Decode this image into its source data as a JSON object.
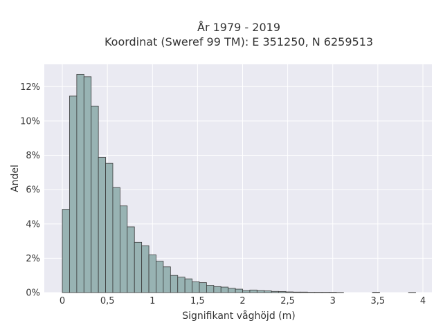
{
  "chart_data": {
    "type": "bar",
    "title_line1": "År 1979 - 2019",
    "title_line2": "Koordinat (Sweref 99 TM): E 351250, N 6259513",
    "xlabel": "Signifikant våghöjd (m)",
    "ylabel": "Andel",
    "xlim": [
      -0.2,
      4.1
    ],
    "ylim": [
      0,
      0.133
    ],
    "x_ticks": [
      {
        "value": 0,
        "label": "0"
      },
      {
        "value": 0.5,
        "label": "0,5"
      },
      {
        "value": 1,
        "label": "1"
      },
      {
        "value": 1.5,
        "label": "1,5"
      },
      {
        "value": 2,
        "label": "2"
      },
      {
        "value": 2.5,
        "label": "2,5"
      },
      {
        "value": 3,
        "label": "3"
      },
      {
        "value": 3.5,
        "label": "3,5"
      },
      {
        "value": 4,
        "label": "4"
      }
    ],
    "y_ticks": [
      {
        "value": 0,
        "label": "0%"
      },
      {
        "value": 0.02,
        "label": "2%"
      },
      {
        "value": 0.04,
        "label": "4%"
      },
      {
        "value": 0.06,
        "label": "6%"
      },
      {
        "value": 0.08,
        "label": "8%"
      },
      {
        "value": 0.1,
        "label": "10%"
      },
      {
        "value": 0.12,
        "label": "12%"
      }
    ],
    "bin_width": 0.08,
    "bin_start": 0.0,
    "values": [
      0.0485,
      0.1145,
      0.1272,
      0.1258,
      0.1087,
      0.0788,
      0.0753,
      0.0612,
      0.0505,
      0.0383,
      0.0293,
      0.0273,
      0.022,
      0.0183,
      0.015,
      0.01,
      0.009,
      0.008,
      0.0063,
      0.0058,
      0.0042,
      0.0035,
      0.0032,
      0.0025,
      0.002,
      0.0012,
      0.0015,
      0.0012,
      0.001,
      0.0007,
      0.0006,
      0.0004,
      0.0003,
      0.0003,
      0.0002,
      0.0002,
      0.0002,
      0.0002,
      0.0001,
      0,
      0,
      0,
      0,
      0.0002,
      0,
      0,
      0,
      0,
      0.0001
    ],
    "colors": {
      "plot_bg": "#eaeaf2",
      "grid": "#ffffff",
      "bar_fill": "#98b3b3",
      "bar_edge": "#3a3a3a"
    }
  }
}
